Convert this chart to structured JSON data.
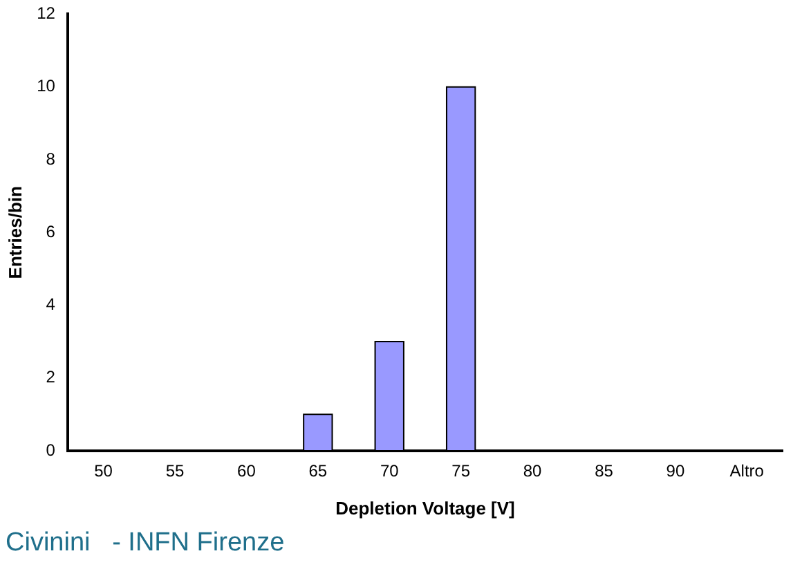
{
  "chart_data": {
    "type": "bar",
    "xlabel": "Depletion Voltage [V]",
    "ylabel": "Entries/bin",
    "categories": [
      "50",
      "55",
      "60",
      "65",
      "70",
      "75",
      "80",
      "85",
      "90",
      "Altro"
    ],
    "values": [
      0,
      0,
      0,
      1,
      3,
      10,
      0,
      0,
      0,
      0
    ],
    "color": "#9999ff",
    "ylim": [
      0,
      12
    ],
    "yticks": [
      0,
      2,
      4,
      6,
      8,
      10,
      12
    ],
    "grid": false,
    "legend": false,
    "annotations": [
      "Civinini   - INFN Firenze"
    ]
  }
}
